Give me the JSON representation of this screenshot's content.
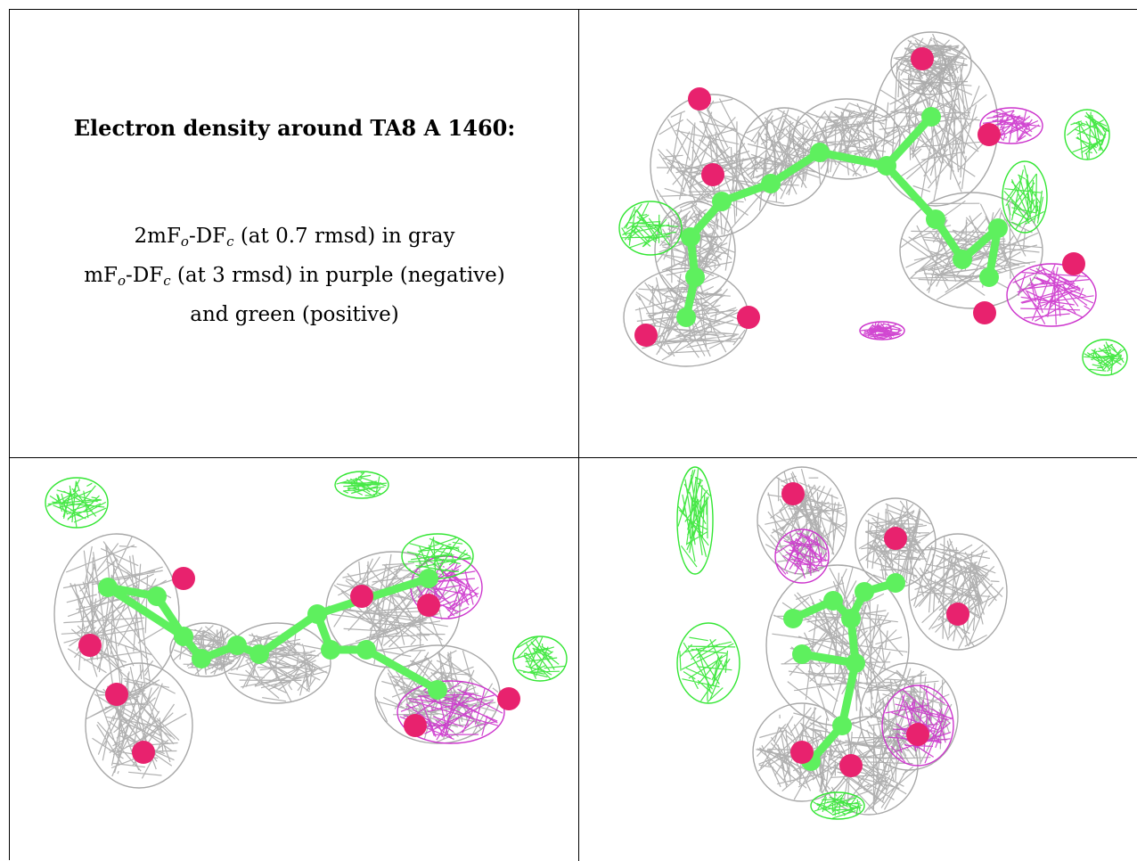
{
  "title": "Electron density around TA8 A 1460:",
  "legend": [
    {
      "pre": "2mF",
      "s1": "o",
      "mid": "-DF",
      "s2": "c",
      "post": " (at 0.7 rmsd) in gray"
    },
    {
      "pre": "mF",
      "s1": "o",
      "mid": "-DF",
      "s2": "c",
      "post": " (at 3 rmsd) in purple (negative)"
    },
    {
      "text": "and green (positive)"
    }
  ],
  "colors": {
    "mesh_2fofc": "#a8a8a8",
    "mesh_negative": "#cc33cc",
    "mesh_positive": "#33e633",
    "carbon": "#5ef05e",
    "oxygen": "#e8226e",
    "border": "#000000"
  },
  "views": [
    {
      "name": "view-top-right"
    },
    {
      "name": "view-bottom-left"
    },
    {
      "name": "view-bottom-right"
    }
  ]
}
